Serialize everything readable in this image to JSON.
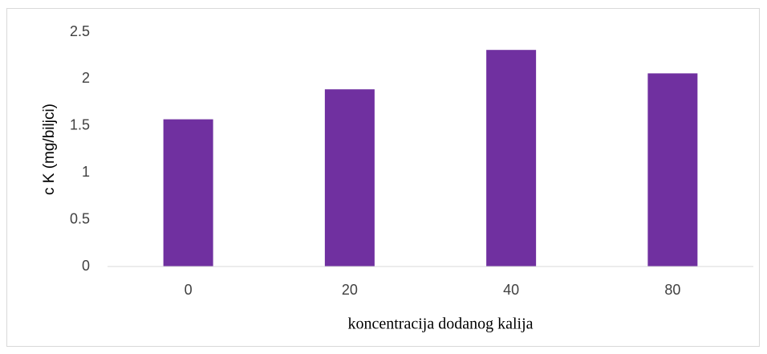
{
  "chart_data": {
    "type": "bar",
    "categories": [
      "0",
      "20",
      "40",
      "80"
    ],
    "values": [
      1.57,
      1.89,
      2.31,
      2.06
    ],
    "color": "#7030a0",
    "ylim": [
      0,
      2.5
    ],
    "yticks": [
      0,
      0.5,
      1,
      1.5,
      2,
      2.5
    ],
    "grid": false,
    "y_label": "c K (mg/biljci)",
    "x_label": "koncentracija dodanog kalija"
  }
}
